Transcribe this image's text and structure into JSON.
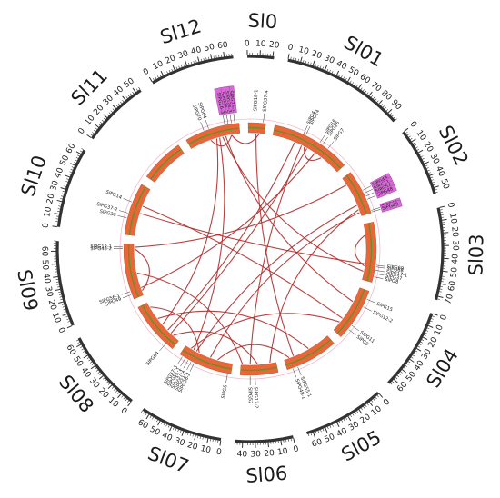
{
  "diagram": {
    "chromosomes": [
      {
        "id": "Sl0",
        "length": 21
      },
      {
        "id": "Sl01",
        "length": 98
      },
      {
        "id": "Sl02",
        "length": 55
      },
      {
        "id": "Sl03",
        "length": 73
      },
      {
        "id": "Sl04",
        "length": 65
      },
      {
        "id": "Sl05",
        "length": 65
      },
      {
        "id": "Sl06",
        "length": 46
      },
      {
        "id": "Sl07",
        "length": 66
      },
      {
        "id": "Sl08",
        "length": 65
      },
      {
        "id": "Sl09",
        "length": 68
      },
      {
        "id": "Sl10",
        "length": 64
      },
      {
        "id": "Sl11",
        "length": 54
      },
      {
        "id": "Sl12",
        "length": 67
      }
    ],
    "colors": {
      "ideogram_fill": "#e8673a",
      "ideogram_core": "#6b8e23",
      "link": "#b32a2a",
      "highlight_box": "#d86ad8",
      "axis": "#333333"
    },
    "genes": [
      {
        "name": "SlPG37-4",
        "chrom": "Sl0",
        "pos": 18
      },
      {
        "name": "SlPG18-1",
        "chrom": "Sl0",
        "pos": 8
      },
      {
        "name": "SlPG26-1",
        "chrom": "Sl12",
        "pos": 62,
        "hl": true
      },
      {
        "name": "SlPG24-3",
        "chrom": "Sl12",
        "pos": 58,
        "hl": true
      },
      {
        "name": "SlPG26-2",
        "chrom": "Sl12",
        "pos": 54,
        "hl": true
      },
      {
        "name": "SlPG26-3",
        "chrom": "Sl12",
        "pos": 50,
        "hl": true
      },
      {
        "name": "SlPG64",
        "chrom": "Sl12",
        "pos": 30
      },
      {
        "name": "SlPG70",
        "chrom": "Sl12",
        "pos": 24
      },
      {
        "name": "SlPG4",
        "chrom": "Sl01",
        "pos": 36
      },
      {
        "name": "SlPG24",
        "chrom": "Sl01",
        "pos": 39
      },
      {
        "name": "SlPG16",
        "chrom": "Sl01",
        "pos": 58
      },
      {
        "name": "SlPG26",
        "chrom": "Sl01",
        "pos": 62
      },
      {
        "name": "SlPG7",
        "chrom": "Sl01",
        "pos": 70
      },
      {
        "name": "SlPG43",
        "chrom": "Sl02",
        "pos": 26,
        "hl": true
      },
      {
        "name": "SlPG71",
        "chrom": "Sl02",
        "pos": 30,
        "hl": true
      },
      {
        "name": "SlPG57",
        "chrom": "Sl02",
        "pos": 34,
        "hl": true
      },
      {
        "name": "SlPG48",
        "chrom": "Sl02",
        "pos": 38,
        "hl": true
      },
      {
        "name": "SlPG46",
        "chrom": "Sl02",
        "pos": 52,
        "hl": true
      },
      {
        "name": "SlPG49",
        "chrom": "Sl02",
        "pos": 54,
        "hl": true
      },
      {
        "name": "SlPG69",
        "chrom": "Sl03",
        "pos": 52
      },
      {
        "name": "SlPG68",
        "chrom": "Sl03",
        "pos": 54
      },
      {
        "name": "SlPG17-1",
        "chrom": "Sl03",
        "pos": 58
      },
      {
        "name": "SlPG37",
        "chrom": "Sl03",
        "pos": 62
      },
      {
        "name": "SlPG8",
        "chrom": "Sl03",
        "pos": 66
      },
      {
        "name": "SlPG15",
        "chrom": "Sl04",
        "pos": 10
      },
      {
        "name": "SlPG12-2",
        "chrom": "Sl04",
        "pos": 20
      },
      {
        "name": "SlPG11",
        "chrom": "Sl04",
        "pos": 46
      },
      {
        "name": "SlPG9",
        "chrom": "Sl04",
        "pos": 52
      },
      {
        "name": "SlPG55-1",
        "chrom": "Sl05",
        "pos": 52
      },
      {
        "name": "SlPG48-1",
        "chrom": "Sl05",
        "pos": 58
      },
      {
        "name": "SlPG52",
        "chrom": "Sl06",
        "pos": 34
      },
      {
        "name": "SlPG17-2",
        "chrom": "Sl06",
        "pos": 28
      },
      {
        "name": "SlPG6",
        "chrom": "Sl07",
        "pos": 4
      },
      {
        "name": "SlPG38-2",
        "chrom": "Sl07",
        "pos": 46
      },
      {
        "name": "SlPG51-2",
        "chrom": "Sl07",
        "pos": 50
      },
      {
        "name": "SlPG37-1",
        "chrom": "Sl07",
        "pos": 54
      },
      {
        "name": "SlPG51-1",
        "chrom": "Sl07",
        "pos": 58
      },
      {
        "name": "SlPG37-3",
        "chrom": "Sl07",
        "pos": 62
      },
      {
        "name": "SlPG64",
        "chrom": "Sl08",
        "pos": 10
      },
      {
        "name": "SlPG56-1",
        "chrom": "Sl09",
        "pos": 10
      },
      {
        "name": "SlPG49",
        "chrom": "Sl09",
        "pos": 6
      },
      {
        "name": "SlPG12-1",
        "chrom": "Sl09",
        "pos": 64
      },
      {
        "name": "SlPG48-2",
        "chrom": "Sl09",
        "pos": 62
      },
      {
        "name": "SlPG36",
        "chrom": "Sl10",
        "pos": 20
      },
      {
        "name": "SlPG37-2",
        "chrom": "Sl10",
        "pos": 26
      },
      {
        "name": "SlPG14",
        "chrom": "Sl10",
        "pos": 40
      }
    ],
    "links": [
      [
        [
          "Sl12",
          56
        ],
        [
          "Sl0",
          14
        ]
      ],
      [
        [
          "Sl12",
          56
        ],
        [
          "Sl12",
          28
        ]
      ],
      [
        [
          "Sl0",
          10
        ],
        [
          "Sl05",
          52
        ]
      ],
      [
        [
          "Sl12",
          36
        ],
        [
          "Sl08",
          30
        ]
      ],
      [
        [
          "Sl12",
          40
        ],
        [
          "Sl07",
          54
        ]
      ],
      [
        [
          "Sl12",
          44
        ],
        [
          "Sl03",
          62
        ]
      ],
      [
        [
          "Sl12",
          48
        ],
        [
          "Sl04",
          20
        ]
      ],
      [
        [
          "Sl01",
          30
        ],
        [
          "Sl08",
          20
        ]
      ],
      [
        [
          "Sl01",
          44
        ],
        [
          "Sl01",
          70
        ]
      ],
      [
        [
          "Sl01",
          40
        ],
        [
          "Sl06",
          34
        ]
      ],
      [
        [
          "Sl01",
          48
        ],
        [
          "Sl08",
          14
        ]
      ],
      [
        [
          "Sl02",
          40
        ],
        [
          "Sl07",
          50
        ]
      ],
      [
        [
          "Sl02",
          46
        ],
        [
          "Sl06",
          8
        ]
      ],
      [
        [
          "Sl02",
          50
        ],
        [
          "Sl07",
          30
        ]
      ],
      [
        [
          "Sl03",
          15
        ],
        [
          "Sl03",
          55
        ]
      ],
      [
        [
          "Sl10",
          30
        ],
        [
          "Sl03",
          52
        ]
      ],
      [
        [
          "Sl10",
          40
        ],
        [
          "Sl04",
          46
        ]
      ],
      [
        [
          "Sl09",
          64
        ],
        [
          "Sl02",
          10
        ]
      ],
      [
        [
          "Sl09",
          10
        ],
        [
          "Sl01",
          60
        ]
      ],
      [
        [
          "Sl09",
          62
        ],
        [
          "Sl09",
          6
        ]
      ],
      [
        [
          "Sl08",
          40
        ],
        [
          "Sl05",
          30
        ]
      ],
      [
        [
          "Sl08",
          10
        ],
        [
          "Sl06",
          24
        ]
      ],
      [
        [
          "Sl07",
          58
        ],
        [
          "Sl04",
          52
        ]
      ],
      [
        [
          "Sl07",
          46
        ],
        [
          "Sl08",
          58
        ]
      ],
      [
        [
          "Sl07",
          20
        ],
        [
          "Sl05",
          58
        ]
      ],
      [
        [
          "Sl06",
          44
        ],
        [
          "Sl09",
          30
        ]
      ]
    ]
  }
}
